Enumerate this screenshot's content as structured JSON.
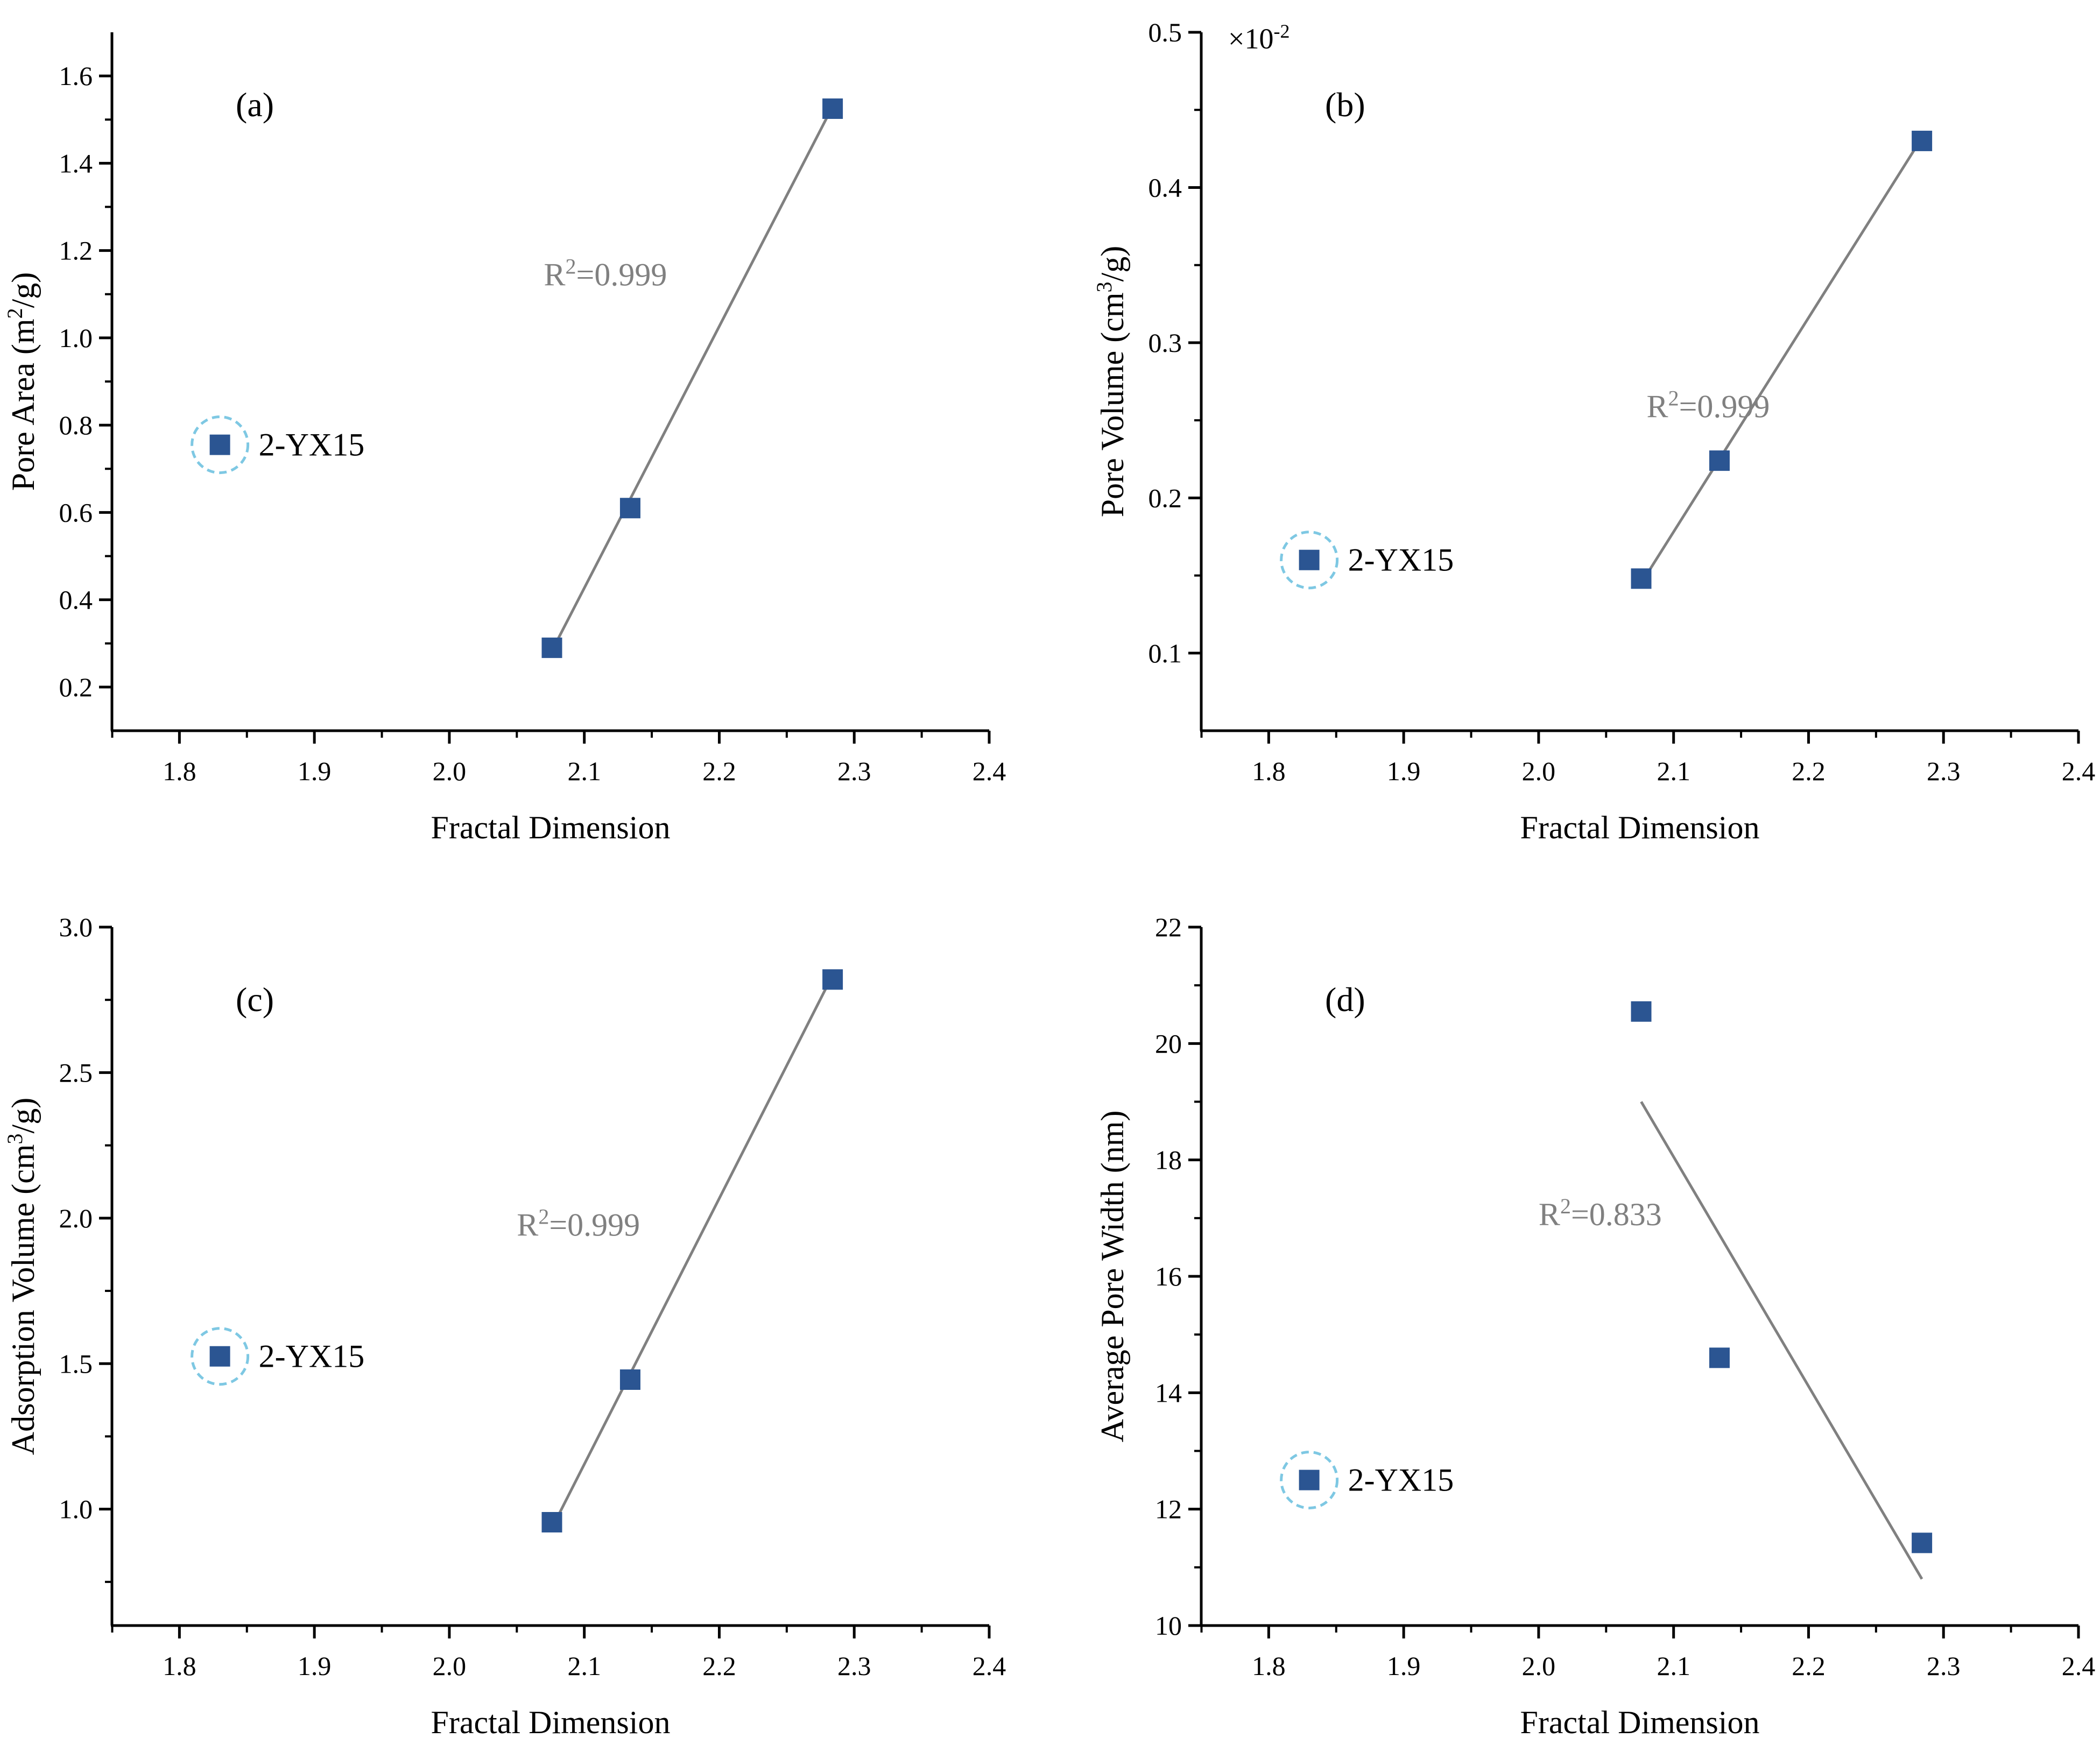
{
  "colors": {
    "marker": "#2b5592",
    "fit_line": "#808080",
    "axis": "#000000",
    "annotation": "#808080",
    "outlier_circle": "#7ec8e3"
  },
  "chart_data": [
    {
      "id": "a",
      "type": "scatter",
      "panel_label": "(a)",
      "xlabel": "Fractal Dimension",
      "ylabel": "Pore Area (m²/g)",
      "xlim": [
        1.75,
        2.4
      ],
      "ylim": [
        0.1,
        1.7
      ],
      "xticks": [
        1.8,
        1.9,
        2.0,
        2.1,
        2.2,
        2.3,
        2.4
      ],
      "xtick_labels": [
        "1.8",
        "1.9",
        "2.0",
        "2.1",
        "2.2",
        "2.3",
        "2.4"
      ],
      "yticks": [
        0.2,
        0.4,
        0.6,
        0.8,
        1.0,
        1.2,
        1.4,
        1.6
      ],
      "ytick_labels": [
        "0.2",
        "0.4",
        "0.6",
        "0.8",
        "1.0",
        "1.2",
        "1.4",
        "1.6"
      ],
      "points": [
        {
          "x": 2.076,
          "y": 0.29
        },
        {
          "x": 2.134,
          "y": 0.61
        },
        {
          "x": 2.284,
          "y": 1.525
        }
      ],
      "outlier": {
        "x": 1.83,
        "y": 0.755,
        "label": "2-YX15"
      },
      "fit": {
        "x": [
          2.076,
          2.284
        ],
        "y": [
          0.283,
          1.53
        ]
      },
      "r2_text": "R²=0.999",
      "r2_pos": {
        "x": 2.07,
        "y": 1.12
      },
      "multiplier": ""
    },
    {
      "id": "b",
      "type": "scatter",
      "panel_label": "(b)",
      "xlabel": "Fractal Dimension",
      "ylabel": "Pore Volume (cm³/g)",
      "xlim": [
        1.75,
        2.4
      ],
      "ylim": [
        0.05,
        0.5
      ],
      "xticks": [
        1.8,
        1.9,
        2.0,
        2.1,
        2.2,
        2.3,
        2.4
      ],
      "xtick_labels": [
        "1.8",
        "1.9",
        "2.0",
        "2.1",
        "2.2",
        "2.3",
        "2.4"
      ],
      "yticks": [
        0.1,
        0.2,
        0.3,
        0.4,
        0.5
      ],
      "ytick_labels": [
        "0.1",
        "0.2",
        "0.3",
        "0.4",
        "0.5"
      ],
      "points": [
        {
          "x": 2.076,
          "y": 0.148
        },
        {
          "x": 2.134,
          "y": 0.224
        },
        {
          "x": 2.284,
          "y": 0.43
        }
      ],
      "outlier": {
        "x": 1.83,
        "y": 0.16,
        "label": "2-YX15"
      },
      "fit": {
        "x": [
          2.076,
          2.284
        ],
        "y": [
          0.145,
          0.432
        ]
      },
      "r2_text": "R²=0.999",
      "r2_pos": {
        "x": 2.08,
        "y": 0.252
      },
      "multiplier": "×10⁻²"
    },
    {
      "id": "c",
      "type": "scatter",
      "panel_label": "(c)",
      "xlabel": "Fractal Dimension",
      "ylabel": "Adsorption Volume (cm³/g)",
      "xlim": [
        1.75,
        2.4
      ],
      "ylim": [
        0.6,
        3.0
      ],
      "xticks": [
        1.8,
        1.9,
        2.0,
        2.1,
        2.2,
        2.3,
        2.4
      ],
      "xtick_labels": [
        "1.8",
        "1.9",
        "2.0",
        "2.1",
        "2.2",
        "2.3",
        "2.4"
      ],
      "yticks": [
        1.0,
        1.5,
        2.0,
        2.5,
        3.0
      ],
      "ytick_labels": [
        "1.0",
        "1.5",
        "2.0",
        "2.5",
        "3.0"
      ],
      "points": [
        {
          "x": 2.076,
          "y": 0.955
        },
        {
          "x": 2.134,
          "y": 1.445
        },
        {
          "x": 2.284,
          "y": 2.82
        }
      ],
      "outlier": {
        "x": 1.83,
        "y": 1.525,
        "label": "2-YX15"
      },
      "fit": {
        "x": [
          2.076,
          2.284
        ],
        "y": [
          0.935,
          2.835
        ]
      },
      "r2_text": "R²=0.999",
      "r2_pos": {
        "x": 2.05,
        "y": 1.94
      },
      "multiplier": ""
    },
    {
      "id": "d",
      "type": "scatter",
      "panel_label": "(d)",
      "xlabel": "Fractal Dimension",
      "ylabel": "Average Pore Width (nm)",
      "xlim": [
        1.75,
        2.4
      ],
      "ylim": [
        10,
        22
      ],
      "xticks": [
        1.8,
        1.9,
        2.0,
        2.1,
        2.2,
        2.3,
        2.4
      ],
      "xtick_labels": [
        "1.8",
        "1.9",
        "2.0",
        "2.1",
        "2.2",
        "2.3",
        "2.4"
      ],
      "yticks": [
        10,
        12,
        14,
        16,
        18,
        20,
        22
      ],
      "ytick_labels": [
        "10",
        "12",
        "14",
        "16",
        "18",
        "20",
        "22"
      ],
      "points": [
        {
          "x": 2.076,
          "y": 20.55
        },
        {
          "x": 2.134,
          "y": 14.6
        },
        {
          "x": 2.284,
          "y": 11.42
        }
      ],
      "outlier": {
        "x": 1.83,
        "y": 12.5,
        "label": "2-YX15"
      },
      "fit": {
        "x": [
          2.076,
          2.284
        ],
        "y": [
          19.0,
          10.8
        ]
      },
      "r2_text": "R²=0.833",
      "r2_pos": {
        "x": 2.0,
        "y": 16.88
      },
      "multiplier": ""
    }
  ]
}
